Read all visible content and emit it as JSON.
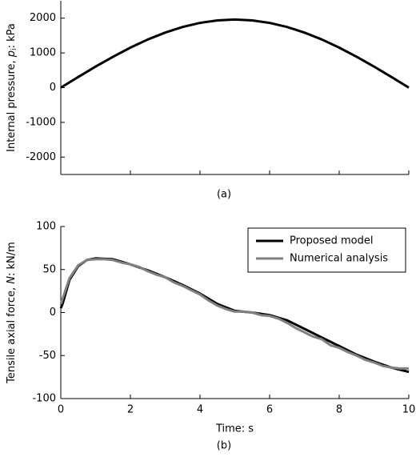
{
  "chart_data": [
    {
      "type": "line",
      "ylabel": [
        "Internal pressure, ",
        "p",
        "i",
        ": kPa"
      ],
      "caption": "(a)",
      "x": [
        0,
        0.5,
        1,
        1.5,
        2,
        2.5,
        3,
        3.5,
        4,
        4.5,
        5,
        5.5,
        6,
        6.5,
        7,
        7.5,
        8,
        8.5,
        9,
        9.5,
        10
      ],
      "values": [
        0,
        307,
        606,
        890,
        1152,
        1386,
        1586,
        1746,
        1864,
        1936,
        1960,
        1936,
        1864,
        1746,
        1586,
        1386,
        1152,
        890,
        606,
        307,
        0
      ],
      "color": "#000000",
      "xlim": [
        0,
        10
      ],
      "xticks": [
        0,
        2,
        4,
        6,
        8,
        10
      ],
      "xtick_labels": false,
      "ylim": [
        -2500,
        2500
      ],
      "yticks": [
        -2000,
        -1000,
        0,
        1000,
        2000
      ]
    },
    {
      "type": "line",
      "ylabel": [
        "Tensile axial force, ",
        "N",
        "",
        ": kN/m"
      ],
      "xlabel": "Time: s",
      "caption": "(b)",
      "series": [
        {
          "name": "Proposed model",
          "color": "#000000",
          "x": [
            0,
            0.05,
            0.25,
            0.5,
            0.75,
            1,
            1.5,
            2,
            2.5,
            3,
            3.5,
            4,
            4.5,
            5,
            5.5,
            6,
            6.5,
            7,
            7.5,
            8,
            8.5,
            9,
            9.5,
            10
          ],
          "values": [
            5,
            10,
            38,
            54,
            61,
            63,
            62,
            56,
            49,
            41,
            32,
            22,
            10,
            2,
            0,
            -3,
            -9,
            -19,
            -29,
            -39,
            -49,
            -57,
            -64,
            -69
          ]
        },
        {
          "name": "Numerical analysis",
          "color": "#808080",
          "x": [
            0,
            0.25,
            0.5,
            0.75,
            1,
            1.25,
            1.5,
            1.75,
            2,
            2.25,
            2.5,
            2.75,
            3,
            3.25,
            3.5,
            3.75,
            4,
            4.25,
            4.5,
            4.75,
            5,
            5.25,
            5.5,
            5.75,
            6,
            6.25,
            6.5,
            6.75,
            7,
            7.25,
            7.5,
            7.75,
            8,
            8.25,
            8.5,
            8.75,
            9,
            9.25,
            9.5,
            9.75,
            10
          ],
          "values": [
            10,
            40,
            55,
            61,
            62,
            62,
            61,
            58,
            56,
            53,
            48,
            44,
            41,
            35,
            31,
            26,
            21,
            14,
            8,
            4,
            1,
            1,
            0,
            -3,
            -4,
            -7,
            -12,
            -18,
            -23,
            -28,
            -31,
            -38,
            -41,
            -46,
            -50,
            -55,
            -58,
            -62,
            -64,
            -65,
            -65
          ]
        }
      ],
      "legend": "upper right",
      "xlim": [
        0,
        10
      ],
      "xticks": [
        0,
        2,
        4,
        6,
        8,
        10
      ],
      "xtick_labels": true,
      "ylim": [
        -100,
        100
      ],
      "yticks": [
        -100,
        -50,
        0,
        50,
        100
      ]
    }
  ]
}
